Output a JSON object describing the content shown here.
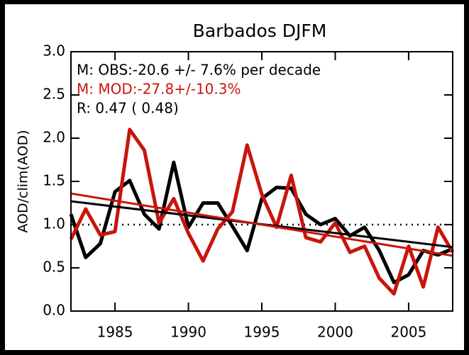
{
  "chart_data": {
    "type": "line",
    "title": "Barbados DJFM",
    "y_label": "AOD/clim(AOD)",
    "annotations": [
      {
        "text": "M: OBS:-20.6 +/- 7.6% per decade",
        "color": "#000000"
      },
      {
        "text": "M: MOD:-27.8+/-10.3%",
        "color": "#c8150c"
      },
      {
        "text": "R: 0.47 ( 0.48)",
        "color": "#000000"
      }
    ],
    "x": [
      1982,
      1983,
      1984,
      1985,
      1986,
      1987,
      1988,
      1989,
      1990,
      1991,
      1992,
      1993,
      1994,
      1995,
      1996,
      1997,
      1998,
      1999,
      2000,
      2001,
      2002,
      2003,
      2004,
      2005,
      2006,
      2007,
      2008
    ],
    "series": [
      {
        "color": "#000000",
        "values": [
          1.12,
          0.62,
          0.78,
          1.38,
          1.51,
          1.12,
          0.95,
          1.72,
          0.97,
          1.25,
          1.25,
          0.98,
          0.7,
          1.3,
          1.43,
          1.42,
          1.12,
          1.0,
          1.07,
          0.87,
          0.97,
          0.7,
          0.33,
          0.42,
          0.7,
          0.65,
          0.72
        ]
      },
      {
        "color": "#c8150c",
        "values": [
          0.83,
          1.18,
          0.88,
          0.92,
          2.1,
          1.86,
          1.02,
          1.3,
          0.9,
          0.58,
          0.95,
          1.15,
          1.92,
          1.35,
          0.97,
          1.57,
          0.85,
          0.8,
          1.02,
          0.68,
          0.75,
          0.38,
          0.2,
          0.75,
          0.28,
          0.97,
          0.68
        ]
      }
    ],
    "trend_lines": [
      {
        "color": "#000000",
        "x": [
          1982,
          2008
        ],
        "values": [
          1.27,
          0.74
        ]
      },
      {
        "color": "#c8150c",
        "x": [
          1982,
          2008
        ],
        "values": [
          1.36,
          0.64
        ]
      }
    ],
    "reference_line": 1,
    "xlim": [
      1982,
      2008
    ],
    "ylim": [
      0,
      3
    ],
    "xticks": [
      1985,
      1990,
      1995,
      2000,
      2005
    ],
    "yticks": [
      {
        "value": 0,
        "label": "0.0"
      },
      {
        "value": 0.5,
        "label": "0.5"
      },
      {
        "value": 1,
        "label": "1.0"
      },
      {
        "value": 1.5,
        "label": "1.5"
      },
      {
        "value": 2,
        "label": "2.0"
      },
      {
        "value": 2.5,
        "label": "2.5"
      },
      {
        "value": 3,
        "label": "3.0"
      }
    ],
    "grid": false
  }
}
